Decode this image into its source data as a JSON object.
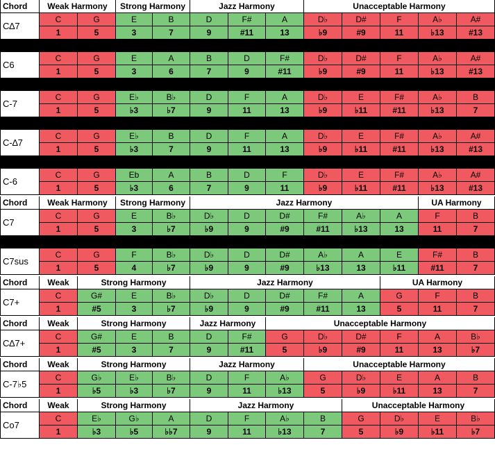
{
  "colors": {
    "red": "#f0595f",
    "green": "#7dc97b",
    "white": "#ffffff",
    "black": "#000000"
  },
  "chord_header_label": "Chord",
  "sections": [
    {
      "headers": [
        {
          "label": "Chord",
          "span": 1
        },
        {
          "label": "Weak Harmony",
          "span": 2
        },
        {
          "label": "Strong Harmony",
          "span": 2
        },
        {
          "label": "Jazz Harmony",
          "span": 3
        },
        {
          "label": "Unacceptable Harmony",
          "span": 5
        }
      ],
      "chords": [
        {
          "name": "C∆7",
          "notes": [
            "C",
            "G",
            "E",
            "B",
            "D",
            "F#",
            "A",
            "D♭",
            "D#",
            "F",
            "A♭",
            "A#"
          ],
          "degrees": [
            "1",
            "5",
            "3",
            "7",
            "9",
            "#11",
            "13",
            "♭9",
            "#9",
            "11",
            "♭13",
            "#13"
          ],
          "colors": [
            "r",
            "r",
            "g",
            "g",
            "g",
            "g",
            "g",
            "r",
            "r",
            "r",
            "r",
            "r"
          ]
        },
        {
          "name": "C6",
          "notes": [
            "C",
            "G",
            "E",
            "A",
            "B",
            "D",
            "F#",
            "D♭",
            "D#",
            "F",
            "A♭",
            "A#"
          ],
          "degrees": [
            "1",
            "5",
            "3",
            "6",
            "7",
            "9",
            "#11",
            "♭9",
            "#9",
            "11",
            "♭13",
            "#13"
          ],
          "colors": [
            "r",
            "r",
            "g",
            "g",
            "g",
            "g",
            "g",
            "r",
            "r",
            "r",
            "r",
            "r"
          ]
        },
        {
          "name": "C-7",
          "notes": [
            "C",
            "G",
            "E♭",
            "B♭",
            "D",
            "F",
            "A",
            "D♭",
            "E",
            "F#",
            "A♭",
            "B"
          ],
          "degrees": [
            "1",
            "5",
            "♭3",
            "♭7",
            "9",
            "11",
            "13",
            "♭9",
            "♭11",
            "#11",
            "♭13",
            "7"
          ],
          "colors": [
            "r",
            "r",
            "g",
            "g",
            "g",
            "g",
            "g",
            "r",
            "r",
            "r",
            "r",
            "r"
          ]
        },
        {
          "name": "C-∆7",
          "notes": [
            "C",
            "G",
            "E♭",
            "B",
            "D",
            "F",
            "A",
            "D♭",
            "E",
            "F#",
            "A♭",
            "A#"
          ],
          "degrees": [
            "1",
            "5",
            "♭3",
            "7",
            "9",
            "11",
            "13",
            "♭9",
            "♭11",
            "#11",
            "♭13",
            "#13"
          ],
          "colors": [
            "r",
            "r",
            "g",
            "g",
            "g",
            "g",
            "g",
            "r",
            "r",
            "r",
            "r",
            "r"
          ]
        },
        {
          "name": "C-6",
          "notes": [
            "C",
            "G",
            "Eb",
            "A",
            "B",
            "D",
            "F",
            "D♭",
            "E",
            "F#",
            "A♭",
            "A#"
          ],
          "degrees": [
            "1",
            "5",
            "♭3",
            "6",
            "7",
            "9",
            "11",
            "♭9",
            "♭11",
            "#11",
            "♭13",
            "#13"
          ],
          "colors": [
            "r",
            "r",
            "g",
            "g",
            "g",
            "g",
            "g",
            "r",
            "r",
            "r",
            "r",
            "r"
          ]
        }
      ]
    },
    {
      "headers": [
        {
          "label": "Chord",
          "span": 1
        },
        {
          "label": "Weak Harmony",
          "span": 2
        },
        {
          "label": "Strong Harmony",
          "span": 2
        },
        {
          "label": "Jazz Harmony",
          "span": 6
        },
        {
          "label": "UA Harmony",
          "span": 2
        }
      ],
      "chords": [
        {
          "name": "C7",
          "notes": [
            "C",
            "G",
            "E",
            "B♭",
            "D♭",
            "D",
            "D#",
            "F#",
            "A♭",
            "A",
            "F",
            "B"
          ],
          "degrees": [
            "1",
            "5",
            "3",
            "♭7",
            "♭9",
            "9",
            "#9",
            "#11",
            "♭13",
            "13",
            "11",
            "7"
          ],
          "colors": [
            "r",
            "r",
            "g",
            "g",
            "g",
            "g",
            "g",
            "g",
            "g",
            "g",
            "r",
            "r"
          ]
        },
        {
          "name": "C7sus",
          "notes": [
            "C",
            "G",
            "F",
            "B♭",
            "D♭",
            "D",
            "D#",
            "A♭",
            "A",
            "E",
            "F#",
            "B"
          ],
          "degrees": [
            "1",
            "5",
            "4",
            "♭7",
            "♭9",
            "9",
            "#9",
            "♭13",
            "13",
            "♭11",
            "#11",
            "7"
          ],
          "colors": [
            "r",
            "r",
            "g",
            "g",
            "g",
            "g",
            "g",
            "g",
            "g",
            "g",
            "r",
            "r"
          ]
        }
      ]
    },
    {
      "headers": [
        {
          "label": "Chord",
          "span": 1
        },
        {
          "label": "Weak",
          "span": 1
        },
        {
          "label": "Strong Harmony",
          "span": 3
        },
        {
          "label": "Jazz Harmony",
          "span": 5
        },
        {
          "label": "UA Harmony",
          "span": 3
        }
      ],
      "chords": [
        {
          "name": "C7+",
          "notes": [
            "C",
            "G#",
            "E",
            "B♭",
            "D♭",
            "D",
            "D#",
            "F#",
            "A",
            "G",
            "F",
            "B"
          ],
          "degrees": [
            "1",
            "#5",
            "3",
            "♭7",
            "♭9",
            "9",
            "#9",
            "#11",
            "13",
            "5",
            "11",
            "7"
          ],
          "colors": [
            "r",
            "g",
            "g",
            "g",
            "g",
            "g",
            "g",
            "g",
            "g",
            "r",
            "r",
            "r"
          ]
        }
      ]
    },
    {
      "headers": [
        {
          "label": "Chord",
          "span": 1
        },
        {
          "label": "Weak",
          "span": 1
        },
        {
          "label": "Strong Harmony",
          "span": 3
        },
        {
          "label": "Jazz Harmony",
          "span": 2
        },
        {
          "label": "Unacceptable Harmony",
          "span": 6
        }
      ],
      "chords": [
        {
          "name": "C∆7+",
          "notes": [
            "C",
            "G#",
            "E",
            "B",
            "D",
            "F#",
            "G",
            "D♭",
            "D#",
            "F",
            "A",
            "B♭"
          ],
          "degrees": [
            "1",
            "#5",
            "3",
            "7",
            "9",
            "#11",
            "5",
            "♭9",
            "#9",
            "11",
            "13",
            "♭7"
          ],
          "colors": [
            "r",
            "g",
            "g",
            "g",
            "g",
            "g",
            "r",
            "r",
            "r",
            "r",
            "r",
            "r"
          ]
        }
      ]
    },
    {
      "headers": [
        {
          "label": "Chord",
          "span": 1
        },
        {
          "label": "Weak",
          "span": 1
        },
        {
          "label": "Strong Harmony",
          "span": 3
        },
        {
          "label": "Jazz Harmony",
          "span": 3
        },
        {
          "label": "Unacceptable Harmony",
          "span": 5
        }
      ],
      "chords": [
        {
          "name": "C-7♭5",
          "notes": [
            "C",
            "G♭",
            "E♭",
            "B♭",
            "D",
            "F",
            "A♭",
            "G",
            "D♭",
            "E",
            "A",
            "B"
          ],
          "degrees": [
            "1",
            "♭5",
            "♭3",
            "♭7",
            "9",
            "11",
            "♭13",
            "5",
            "♭9",
            "♭11",
            "13",
            "7"
          ],
          "colors": [
            "r",
            "g",
            "g",
            "g",
            "g",
            "g",
            "g",
            "r",
            "r",
            "r",
            "r",
            "r"
          ]
        }
      ]
    },
    {
      "headers": [
        {
          "label": "Chord",
          "span": 1
        },
        {
          "label": "Weak",
          "span": 1
        },
        {
          "label": "Strong Harmony",
          "span": 3
        },
        {
          "label": "Jazz Harmony",
          "span": 4
        },
        {
          "label": "Unacceptable Harmony",
          "span": 4
        }
      ],
      "chords": [
        {
          "name": "Co7",
          "notes": [
            "C",
            "E♭",
            "G♭",
            "A",
            "D",
            "F",
            "A♭",
            "B",
            "G",
            "D♭",
            "E",
            "B♭"
          ],
          "degrees": [
            "1",
            "♭3",
            "♭5",
            "♭♭7",
            "9",
            "11",
            "♭13",
            "7",
            "5",
            "♭9",
            "♭11",
            "♭7"
          ],
          "colors": [
            "r",
            "g",
            "g",
            "g",
            "g",
            "g",
            "g",
            "g",
            "r",
            "r",
            "r",
            "r"
          ]
        }
      ]
    }
  ]
}
